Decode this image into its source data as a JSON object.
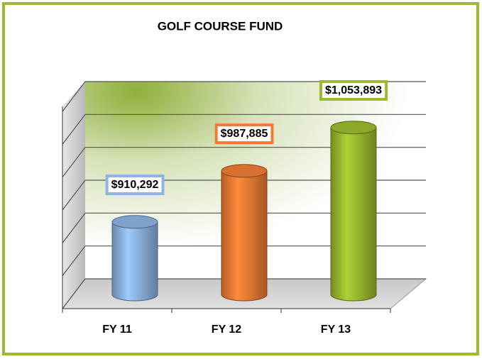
{
  "chart_data": {
    "type": "bar",
    "title": "GOLF COURSE FUND",
    "categories": [
      "FY 11",
      "FY 12",
      "FY 13"
    ],
    "values": [
      910292,
      987885,
      1053893
    ],
    "value_labels": [
      "$910,292",
      "$987,885",
      "$1,053,893"
    ],
    "colors": [
      "#8db4e2",
      "#f07c34",
      "#9bbb2e"
    ],
    "ylim": [
      800000,
      1100000
    ],
    "yticks": [
      800000,
      850000,
      900000,
      950000,
      1000000,
      1050000,
      1100000
    ],
    "grid": true
  }
}
